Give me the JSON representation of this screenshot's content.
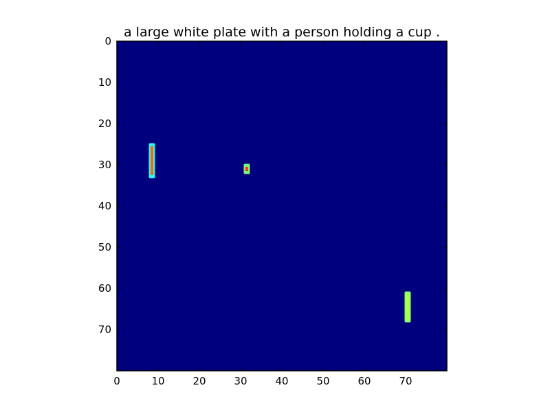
{
  "chart_data": {
    "type": "heatmap",
    "title": "a large white plate with a person holding a cup .",
    "xlabel": "",
    "ylabel": "",
    "xlim": [
      0,
      80
    ],
    "ylim": [
      80,
      0
    ],
    "grid": false,
    "colormap": "jet",
    "background_color": "#00007f",
    "x_ticks": [
      0,
      10,
      20,
      30,
      40,
      50,
      60,
      70
    ],
    "y_ticks": [
      0,
      10,
      20,
      30,
      40,
      50,
      60,
      70
    ],
    "regions": [
      {
        "name": "bar-1",
        "x": [
          8,
          9
        ],
        "y": [
          25,
          33
        ],
        "value": 0.82,
        "color": "#ff6a00",
        "edge_color": "#29f5ee"
      },
      {
        "name": "bar-2",
        "x": [
          31,
          32
        ],
        "y": [
          30,
          32
        ],
        "value": 0.9,
        "color": "#ff3a00",
        "edge_color": "#7af57a"
      },
      {
        "name": "bar-3",
        "x": [
          70,
          71
        ],
        "y": [
          61,
          68
        ],
        "value": 0.6,
        "color": "#b8ff3a",
        "edge_color": "#8cff6a"
      }
    ]
  }
}
